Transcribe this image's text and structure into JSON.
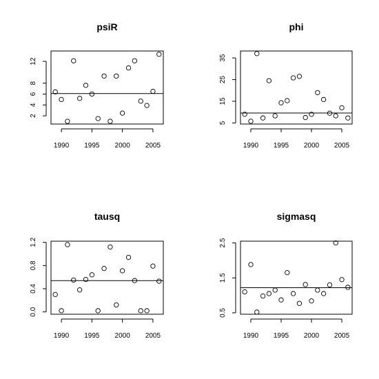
{
  "chart_data": [
    {
      "type": "scatter",
      "title": "psiR",
      "x": [
        1989,
        1990,
        1991,
        1992,
        1993,
        1994,
        1995,
        1996,
        1997,
        1998,
        1999,
        2000,
        2001,
        2002,
        2003,
        2004,
        2005,
        2006
      ],
      "y": [
        6.4,
        5.0,
        1.0,
        12.1,
        5.2,
        7.6,
        6.0,
        1.5,
        9.3,
        1.0,
        9.3,
        2.5,
        10.8,
        12.1,
        4.7,
        3.9,
        6.5,
        13.3
      ],
      "hline": 6.1,
      "xlim": [
        1988.3,
        2006.7
      ],
      "ylim": [
        0.5,
        13.9
      ],
      "xticks": [
        1990,
        1995,
        2000,
        2005
      ],
      "yticks": [
        2,
        4,
        6,
        8,
        12
      ],
      "yticklabels": [
        "2",
        "4",
        "6",
        "8",
        "12"
      ],
      "xlabel": "",
      "ylabel": ""
    },
    {
      "type": "scatter",
      "title": "phi",
      "x": [
        1989,
        1990,
        1991,
        1992,
        1993,
        1994,
        1995,
        1996,
        1997,
        1998,
        1999,
        2000,
        2001,
        2002,
        2003,
        2004,
        2005,
        2006
      ],
      "y": [
        9.0,
        5.8,
        37.0,
        7.3,
        24.5,
        8.3,
        14.3,
        15.3,
        25.8,
        26.5,
        7.5,
        9.0,
        19.0,
        15.8,
        9.5,
        8.3,
        12.0,
        7.3
      ],
      "hline": 9.6,
      "xlim": [
        1988.3,
        2006.7
      ],
      "ylim": [
        4.5,
        38.2
      ],
      "xticks": [
        1990,
        1995,
        2000,
        2005
      ],
      "yticks": [
        5,
        15,
        25,
        35
      ],
      "yticklabels": [
        "5",
        "15",
        "25",
        "35"
      ],
      "xlabel": "",
      "ylabel": ""
    },
    {
      "type": "scatter",
      "title": "tausq",
      "x": [
        1989,
        1990,
        1991,
        1992,
        1993,
        1994,
        1995,
        1996,
        1997,
        1998,
        1999,
        2000,
        2001,
        2002,
        2003,
        2004,
        2005,
        2006
      ],
      "y": [
        0.3,
        0.02,
        1.16,
        0.55,
        0.38,
        0.56,
        0.64,
        0.02,
        0.75,
        1.12,
        0.12,
        0.71,
        0.94,
        0.54,
        0.02,
        0.02,
        0.79,
        0.53
      ],
      "hline": 0.54,
      "xlim": [
        1988.3,
        2006.7
      ],
      "ylim": [
        -0.04,
        1.22
      ],
      "xticks": [
        1990,
        1995,
        2000,
        2005
      ],
      "yticks": [
        0.0,
        0.4,
        0.8,
        1.2
      ],
      "yticklabels": [
        "0.0",
        "0.4",
        "0.8",
        "1.2"
      ],
      "xlabel": "",
      "ylabel": ""
    },
    {
      "type": "scatter",
      "title": "sigmasq",
      "x": [
        1989,
        1990,
        1991,
        1992,
        1993,
        1994,
        1995,
        1996,
        1997,
        1998,
        1999,
        2000,
        2001,
        2002,
        2003,
        2004,
        2005,
        2006
      ],
      "y": [
        1.1,
        1.88,
        0.52,
        0.98,
        1.05,
        1.15,
        0.87,
        1.65,
        1.05,
        0.77,
        1.31,
        0.84,
        1.15,
        1.05,
        1.3,
        2.5,
        1.45,
        1.23
      ],
      "hline": 1.22,
      "xlim": [
        1988.3,
        2006.7
      ],
      "ylim": [
        0.46,
        2.55
      ],
      "xticks": [
        1990,
        1995,
        2000,
        2005
      ],
      "yticks": [
        0.5,
        1.5,
        2.5
      ],
      "yticklabels": [
        "0.5",
        "1.5",
        "2.5"
      ],
      "xlabel": "",
      "ylabel": ""
    }
  ],
  "style": {
    "line_color": "#000000",
    "background": "#ffffff"
  }
}
